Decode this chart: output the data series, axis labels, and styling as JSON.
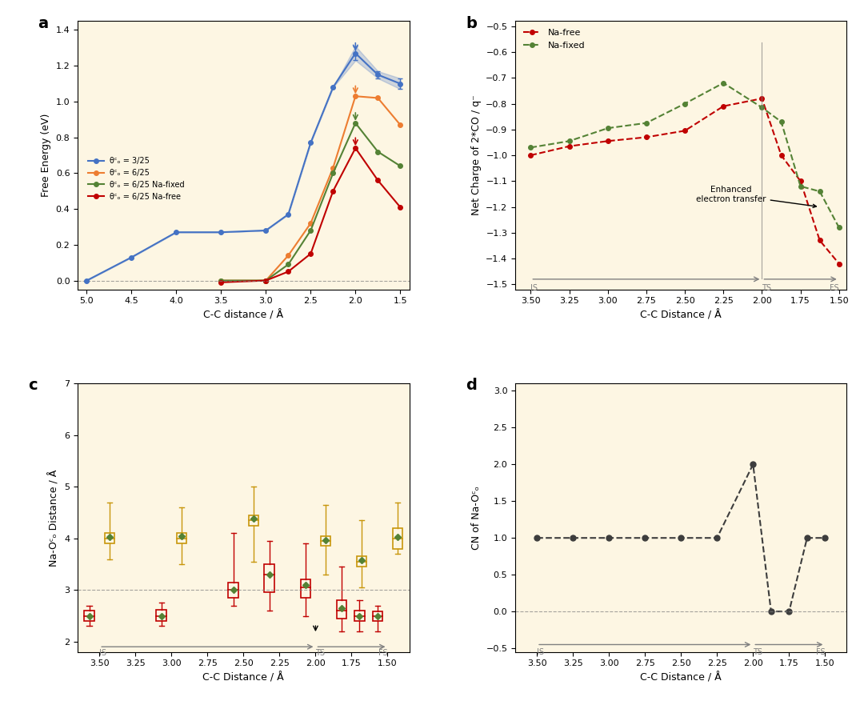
{
  "bg_color": "#fdf6e3",
  "panel_a": {
    "title": "a",
    "xlabel": "C-C distance / Å",
    "ylabel": "Free Energy (eV)",
    "xlim": [
      1.4,
      5.1
    ],
    "ylim": [
      -0.05,
      1.45
    ],
    "xticks": [
      5.0,
      4.5,
      4.0,
      3.5,
      3.0,
      2.5,
      2.0,
      1.5
    ],
    "yticks": [
      0.0,
      0.2,
      0.4,
      0.6,
      0.8,
      1.0,
      1.2,
      1.4
    ],
    "dashed_y": 0.0,
    "series": [
      {
        "label": "θᶜₒ = 3/25",
        "color": "#4472c4",
        "x": [
          5.0,
          4.5,
          4.0,
          3.5,
          3.0,
          2.75,
          2.5,
          2.25,
          2.0,
          1.75,
          1.5
        ],
        "y": [
          0.0,
          0.13,
          0.27,
          0.27,
          0.28,
          0.37,
          0.77,
          1.08,
          1.27,
          1.15,
          1.1
        ],
        "yerr": [
          0.0,
          0.0,
          0.0,
          0.0,
          0.0,
          0.0,
          0.0,
          0.0,
          0.04,
          0.02,
          0.03
        ],
        "ts_x": 2.0,
        "ts_arrow_color": "#4472c4"
      },
      {
        "label": "θᶜₒ = 6/25",
        "color": "#ed7d31",
        "x": [
          3.5,
          3.0,
          2.75,
          2.5,
          2.25,
          2.0,
          1.75,
          1.5
        ],
        "y": [
          0.0,
          0.0,
          0.14,
          0.32,
          0.63,
          1.03,
          1.02,
          0.87
        ],
        "yerr": [
          0.0,
          0.0,
          0.0,
          0.0,
          0.0,
          0.0,
          0.0,
          0.0
        ],
        "ts_x": 2.0,
        "ts_arrow_color": "#ed7d31"
      },
      {
        "label": "θᶜₒ = 6/25 Na-fixed",
        "color": "#548235",
        "x": [
          3.5,
          3.0,
          2.75,
          2.5,
          2.25,
          2.0,
          1.75,
          1.5
        ],
        "y": [
          0.0,
          0.0,
          0.09,
          0.28,
          0.6,
          0.88,
          0.72,
          0.64
        ],
        "yerr": [
          0.0,
          0.0,
          0.0,
          0.0,
          0.0,
          0.0,
          0.0,
          0.0
        ],
        "ts_x": 2.0,
        "ts_arrow_color": "#548235"
      },
      {
        "label": "θᶜₒ = 6/25 Na-free",
        "color": "#c00000",
        "x": [
          3.5,
          3.0,
          2.75,
          2.5,
          2.25,
          2.0,
          1.75,
          1.5
        ],
        "y": [
          -0.01,
          0.0,
          0.05,
          0.15,
          0.5,
          0.74,
          0.56,
          0.41
        ],
        "yerr": [
          0.0,
          0.0,
          0.0,
          0.0,
          0.0,
          0.0,
          0.0,
          0.0
        ],
        "ts_x": 2.0,
        "ts_arrow_color": "#c00000"
      }
    ]
  },
  "panel_b": {
    "title": "b",
    "xlabel": "C-C Distance / Å",
    "ylabel": "Net Charge of 2*CO / q⁻",
    "xlim": [
      1.45,
      3.6
    ],
    "ylim": [
      -1.52,
      -0.48
    ],
    "xticks": [
      3.5,
      3.25,
      3.0,
      2.75,
      2.5,
      2.25,
      2.0,
      1.75,
      1.5
    ],
    "yticks": [
      -0.5,
      -0.6,
      -0.7,
      -0.8,
      -0.9,
      -1.0,
      -1.1,
      -1.2,
      -1.3,
      -1.4,
      -1.5
    ],
    "annotation": "Enhanced\nelectron transfer",
    "ts_x": 2.0,
    "is_x": 3.5,
    "fs_x": 1.5,
    "series": [
      {
        "label": "Na-free",
        "color": "#c00000",
        "x": [
          3.5,
          3.25,
          3.0,
          2.75,
          2.5,
          2.25,
          2.0,
          1.875,
          1.75,
          1.625,
          1.5
        ],
        "y": [
          -1.0,
          -0.965,
          -0.945,
          -0.93,
          -0.905,
          -0.81,
          -0.78,
          -1.0,
          -1.1,
          -1.33,
          -1.42
        ]
      },
      {
        "label": "Na-fixed",
        "color": "#548235",
        "x": [
          3.5,
          3.25,
          3.0,
          2.75,
          2.5,
          2.25,
          2.0,
          1.875,
          1.75,
          1.625,
          1.5
        ],
        "y": [
          -0.97,
          -0.945,
          -0.895,
          -0.875,
          -0.8,
          -0.72,
          -0.815,
          -0.87,
          -1.12,
          -1.14,
          -1.28
        ]
      }
    ]
  },
  "panel_c": {
    "title": "c",
    "xlabel": "C-C Distance / Å",
    "ylabel": "Na-Oᶜₒ Distance / Å",
    "xlim": [
      1.35,
      3.65
    ],
    "ylim": [
      1.8,
      7.0
    ],
    "xticks": [
      3.5,
      3.25,
      3.0,
      2.75,
      2.5,
      2.25,
      2.0,
      1.75,
      1.5
    ],
    "yticks": [
      2,
      3,
      4,
      5,
      6,
      7
    ],
    "dashed_y": 3.0,
    "ts_x": 2.0,
    "is_x": 3.5,
    "fs_x": 1.5,
    "d1_boxes": [
      {
        "x": 3.5,
        "median": 4.0,
        "q1": 3.9,
        "q3": 4.1,
        "whisker_low": 3.6,
        "whisker_high": 4.7,
        "mean": 4.02
      },
      {
        "x": 3.0,
        "median": 4.0,
        "q1": 3.9,
        "q3": 4.1,
        "whisker_low": 3.5,
        "whisker_high": 4.6,
        "mean": 4.05
      },
      {
        "x": 2.5,
        "median": 4.35,
        "q1": 4.25,
        "q3": 4.45,
        "whisker_low": 3.55,
        "whisker_high": 5.0,
        "mean": 4.38
      },
      {
        "x": 2.0,
        "median": 3.95,
        "q1": 3.85,
        "q3": 4.05,
        "whisker_low": 3.3,
        "whisker_high": 4.65,
        "mean": 3.97
      },
      {
        "x": 1.75,
        "median": 3.55,
        "q1": 3.45,
        "q3": 3.65,
        "whisker_low": 3.05,
        "whisker_high": 4.35,
        "mean": 3.57
      },
      {
        "x": 1.5,
        "median": 4.0,
        "q1": 3.8,
        "q3": 4.2,
        "whisker_low": 3.7,
        "whisker_high": 4.7,
        "mean": 4.02
      }
    ],
    "d2_boxes": [
      {
        "x": 3.5,
        "median": 2.5,
        "q1": 2.4,
        "q3": 2.6,
        "whisker_low": 2.3,
        "whisker_high": 2.7,
        "mean": 2.5
      },
      {
        "x": 3.0,
        "median": 2.5,
        "q1": 2.4,
        "q3": 2.62,
        "whisker_low": 2.3,
        "whisker_high": 2.75,
        "mean": 2.5
      },
      {
        "x": 2.5,
        "median": 3.0,
        "q1": 2.85,
        "q3": 3.15,
        "whisker_low": 2.7,
        "whisker_high": 4.1,
        "mean": 3.0
      },
      {
        "x": 2.25,
        "median": 3.3,
        "q1": 2.95,
        "q3": 3.5,
        "whisker_low": 2.6,
        "whisker_high": 3.95,
        "mean": 3.3
      },
      {
        "x": 2.0,
        "median": 3.05,
        "q1": 2.85,
        "q3": 3.2,
        "whisker_low": 2.5,
        "whisker_high": 3.9,
        "mean": 3.1
      },
      {
        "x": 1.75,
        "median": 2.6,
        "q1": 2.45,
        "q3": 2.8,
        "whisker_low": 2.2,
        "whisker_high": 3.45,
        "mean": 2.65
      },
      {
        "x": 1.625,
        "median": 2.5,
        "q1": 2.4,
        "q3": 2.6,
        "whisker_low": 2.2,
        "whisker_high": 2.8,
        "mean": 2.5
      },
      {
        "x": 1.5,
        "median": 2.5,
        "q1": 2.4,
        "q3": 2.58,
        "whisker_low": 2.2,
        "whisker_high": 2.7,
        "mean": 2.5
      }
    ]
  },
  "panel_d": {
    "title": "d",
    "xlabel": "C-C Distance / Å",
    "ylabel": "CN of Na-Oᶜₒ",
    "xlim": [
      1.35,
      3.65
    ],
    "ylim": [
      -0.55,
      3.1
    ],
    "xticks": [
      3.5,
      3.25,
      3.0,
      2.75,
      2.5,
      2.25,
      2.0,
      1.75,
      1.5
    ],
    "yticks": [
      -0.5,
      0.0,
      0.5,
      1.0,
      1.5,
      2.0,
      2.5,
      3.0
    ],
    "dashed_y": 0.0,
    "ts_x": 2.0,
    "is_x": 3.5,
    "fs_x": 1.5,
    "series_x": [
      3.5,
      3.25,
      3.0,
      2.75,
      2.5,
      2.25,
      2.0,
      1.875,
      1.75,
      1.625,
      1.5
    ],
    "series_y": [
      1.0,
      1.0,
      1.0,
      1.0,
      1.0,
      1.0,
      2.0,
      0.0,
      0.0,
      1.0,
      1.0
    ]
  }
}
